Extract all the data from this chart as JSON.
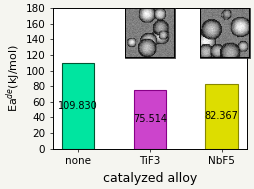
{
  "categories": [
    "none",
    "TiF3",
    "NbF5"
  ],
  "values": [
    109.83,
    75.514,
    82.367
  ],
  "bar_colors": [
    "#00E5A0",
    "#CC44CC",
    "#DDDD00"
  ],
  "bar_edge_colors": [
    "#00CC88",
    "#AA22AA",
    "#BBBB00"
  ],
  "value_labels": [
    "109.830",
    "75.514",
    "82.367"
  ],
  "title": "",
  "xlabel": "catalyzed alloy",
  "ylabel": "Ea$^{de}$(kJ/mol)",
  "ylim": [
    0,
    180
  ],
  "yticks": [
    0,
    20,
    40,
    60,
    80,
    100,
    120,
    140,
    160,
    180
  ],
  "xlabel_fontsize": 9,
  "ylabel_fontsize": 8,
  "tick_fontsize": 7.5,
  "value_fontsize": 7,
  "background_color": "#f5f5f0",
  "plot_bg_color": "#ffffff"
}
